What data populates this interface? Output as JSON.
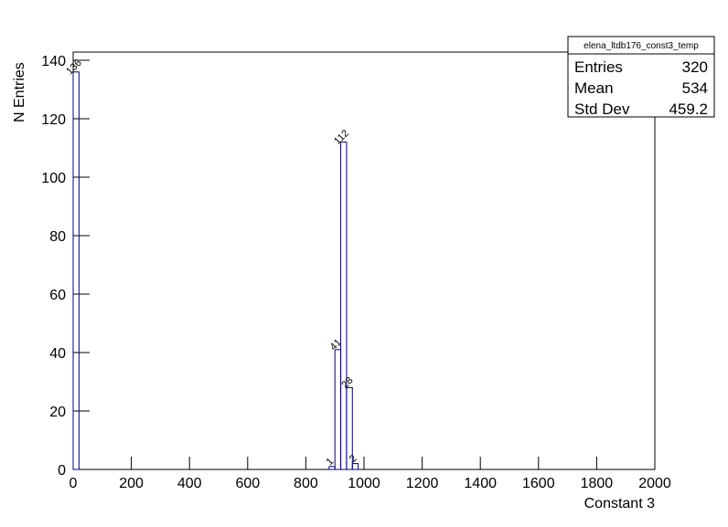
{
  "chart_data": {
    "type": "histogram",
    "x_label": "Constant 3",
    "y_label": "N Entries",
    "color": "#000080",
    "bins": [
      0,
      20,
      40,
      60,
      80,
      100,
      120,
      140,
      160,
      180,
      200,
      220,
      240,
      260,
      280,
      300,
      320,
      340,
      360,
      380,
      400,
      420,
      440,
      460,
      480,
      500,
      520,
      540,
      560,
      580,
      600,
      620,
      640,
      660,
      680,
      700,
      720,
      740,
      760,
      780,
      800,
      820,
      840,
      860,
      880,
      900,
      920,
      940,
      960,
      980,
      1000,
      1020,
      1040,
      1060,
      1080,
      1100,
      1120,
      1140,
      1160,
      1180,
      1200,
      1220,
      1240,
      1260,
      1280,
      1300,
      1320,
      1340,
      1360,
      1380,
      1400,
      1420,
      1440,
      1460,
      1480,
      1500,
      1520,
      1540,
      1560,
      1580,
      1600,
      1620,
      1640,
      1660,
      1680,
      1700,
      1720,
      1740,
      1760,
      1780,
      1800,
      1820,
      1840,
      1860,
      1880,
      1900,
      1920,
      1940,
      1960,
      1980,
      2000
    ],
    "counts": [
      136,
      0,
      0,
      0,
      0,
      0,
      0,
      0,
      0,
      0,
      0,
      0,
      0,
      0,
      0,
      0,
      0,
      0,
      0,
      0,
      0,
      0,
      0,
      0,
      0,
      0,
      0,
      0,
      0,
      0,
      0,
      0,
      0,
      0,
      0,
      0,
      0,
      0,
      0,
      0,
      0,
      0,
      0,
      0,
      1,
      41,
      112,
      28,
      2,
      0,
      0,
      0,
      0,
      0,
      0,
      0,
      0,
      0,
      0,
      0,
      0,
      0,
      0,
      0,
      0,
      0,
      0,
      0,
      0,
      0,
      0,
      0,
      0,
      0,
      0,
      0,
      0,
      0,
      0,
      0,
      0,
      0,
      0,
      0,
      0,
      0,
      0,
      0,
      0,
      0,
      0,
      0,
      0,
      0,
      0,
      0,
      0,
      0,
      0,
      0
    ],
    "xlim": [
      0,
      2000
    ],
    "xticks": [
      0,
      200,
      400,
      600,
      800,
      1000,
      1200,
      1400,
      1600,
      1800,
      2000
    ],
    "ylim": [
      0,
      142.8
    ],
    "yticks": [
      0,
      20,
      40,
      60,
      80,
      100,
      120,
      140
    ],
    "stats": {
      "title": "elena_ltdb176_const3_temp",
      "rows": [
        [
          "Entries",
          320
        ],
        [
          "Mean",
          534
        ],
        [
          "Std Dev",
          459.2
        ]
      ]
    }
  }
}
